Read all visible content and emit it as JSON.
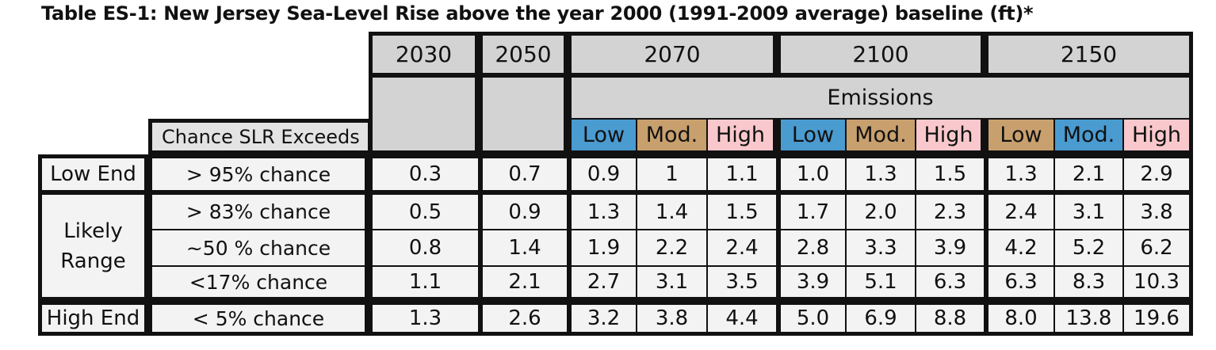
{
  "title": "Table ES-1: New Jersey Sea-Level Rise above the year 2000  (1991-2009  average) baseline (ft)*",
  "chance_header": "Chance SLR Exceeds",
  "emissions_label": "Emissions",
  "years": [
    "2030",
    "2050",
    "2070",
    "2100",
    "2150"
  ],
  "scenarios": {
    "2070": [
      "Low",
      "Mod.",
      "High"
    ],
    "2100": [
      "Low",
      "Mod.",
      "High"
    ],
    "2150": [
      "Low",
      "Mod.",
      "High"
    ]
  },
  "row_groups": [
    "Low End",
    "Likely Range",
    "High End"
  ],
  "rows": [
    {
      "chance": "> 95% chance",
      "values": [
        "0.3",
        "0.7",
        "0.9",
        "1",
        "1.1",
        "1.0",
        "1.3",
        "1.5",
        "1.3",
        "2.1",
        "2.9"
      ]
    },
    {
      "chance": "> 83% chance",
      "values": [
        "0.5",
        "0.9",
        "1.3",
        "1.4",
        "1.5",
        "1.7",
        "2.0",
        "2.3",
        "2.4",
        "3.1",
        "3.8"
      ]
    },
    {
      "chance": "~50 % chance",
      "values": [
        "0.8",
        "1.4",
        "1.9",
        "2.2",
        "2.4",
        "2.8",
        "3.3",
        "3.9",
        "4.2",
        "5.2",
        "6.2"
      ]
    },
    {
      "chance": "<17% chance",
      "values": [
        "1.1",
        "2.1",
        "2.7",
        "3.1",
        "3.5",
        "3.9",
        "5.1",
        "6.3",
        "6.3",
        "8.3",
        "10.3"
      ]
    },
    {
      "chance": "< 5% chance",
      "values": [
        "1.3",
        "2.6",
        "3.2",
        "3.8",
        "4.4",
        "5.0",
        "6.9",
        "8.8",
        "8.0",
        "13.8",
        "19.6"
      ]
    }
  ],
  "colors": {
    "low": "#4a9bd0",
    "moderate": "#c8a06e",
    "high": "#f9c8cc",
    "header_gray": "#d3d3d3",
    "body_gray": "#f3f3f3"
  }
}
